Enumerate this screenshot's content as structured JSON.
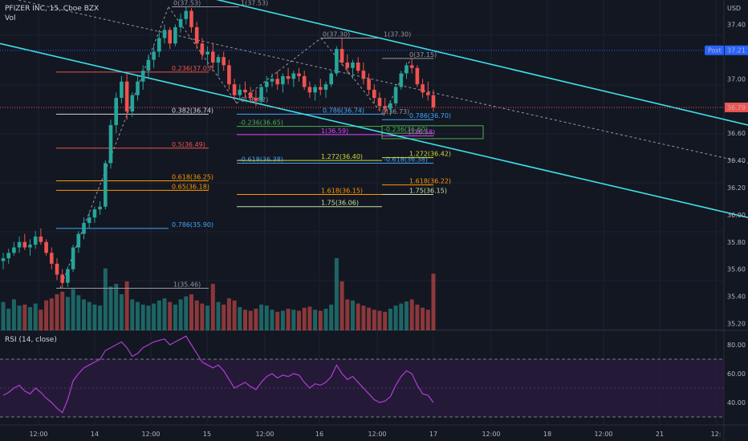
{
  "header": {
    "symbol_line": "PFIZER INC, 15, Cboe BZX",
    "vol_label": "Vol",
    "rsi_label": "RSI (14, close)",
    "currency": "USD"
  },
  "colors": {
    "background": "#131722",
    "up": "#26a69a",
    "down": "#ef5350",
    "channel": "#3ee0e8",
    "rsi_line": "#b03dd6",
    "rsi_fill": "#2a1a3f"
  },
  "price_axis": {
    "ticks": [
      "37.40",
      "37.20",
      "37.00",
      "36.80",
      "36.60",
      "36.40",
      "36.20",
      "36.00",
      "35.80",
      "35.60",
      "35.40",
      "35.20"
    ],
    "post_label": "Post",
    "post_price": "37.21",
    "last_price": "36.79"
  },
  "rsi_axis": {
    "ticks": [
      "80.00",
      "60.00",
      "40.00"
    ]
  },
  "time_axis": {
    "labels": [
      "12:00",
      "14",
      "12:00",
      "15",
      "12:00",
      "16",
      "12:00",
      "17",
      "12:00",
      "18",
      "12:00",
      "21",
      "12:"
    ]
  },
  "fib_labels": [
    {
      "text": "0(37.53)",
      "color": "#9598a1"
    },
    {
      "text": "1(37.53)",
      "color": "#9598a1"
    },
    {
      "text": "0.236(37.05)",
      "color": "#ef5350"
    },
    {
      "text": "0(36.82)",
      "color": "#9598a1"
    },
    {
      "text": "0.382(36.74)",
      "color": "#d1d4dc"
    },
    {
      "text": "0.5(36.49)",
      "color": "#ef5350"
    },
    {
      "text": "0.618(36.25)",
      "color": "#ff9800"
    },
    {
      "text": "0.65(36.18)",
      "color": "#ff9800"
    },
    {
      "text": "0.786(35.90)",
      "color": "#42a5f5"
    },
    {
      "text": "1(35.46)",
      "color": "#9598a1"
    },
    {
      "text": "0(37.30)",
      "color": "#9598a1"
    },
    {
      "text": "1(37.30)",
      "color": "#9598a1"
    },
    {
      "text": "0.786(36.74)",
      "color": "#42a5f5"
    },
    {
      "text": "-0.236(36.65)",
      "color": "#4caf50"
    },
    {
      "text": "1(36.59)",
      "color": "#e040fb"
    },
    {
      "text": "-0.618(36.38)",
      "color": "#42a5f5"
    },
    {
      "text": "1.272(36.40)",
      "color": "#cddc39"
    },
    {
      "text": "1.618(36.15)",
      "color": "#ff9800"
    },
    {
      "text": "1.75(36.06)",
      "color": "#c5e1a5"
    },
    {
      "text": "0(37.15)",
      "color": "#9598a1"
    },
    {
      "text": "0(36.73)",
      "color": "#9598a1"
    },
    {
      "text": "0.786(36.70)",
      "color": "#42a5f5"
    },
    {
      "text": "-0.236(36.60)",
      "color": "#4caf50"
    },
    {
      "text": "1(36.58)",
      "color": "#e040fb"
    },
    {
      "text": "-0.618(36.38)",
      "color": "#42a5f5"
    },
    {
      "text": "1.272(36.42)",
      "color": "#cddc39"
    },
    {
      "text": "1.618(36.22)",
      "color": "#ff9800"
    },
    {
      "text": "1.75(36.15)",
      "color": "#c5e1a5"
    }
  ],
  "chart_data": {
    "type": "candlestick",
    "title": "PFIZER INC, 15, Cboe BZX",
    "ylim": [
      35.15,
      37.58
    ],
    "last_close": 36.79,
    "post_price": 37.21,
    "ohlc": [
      [
        35.66,
        35.72,
        35.6,
        35.68
      ],
      [
        35.68,
        35.75,
        35.64,
        35.72
      ],
      [
        35.72,
        35.8,
        35.7,
        35.76
      ],
      [
        35.76,
        35.84,
        35.72,
        35.8
      ],
      [
        35.8,
        35.86,
        35.74,
        35.76
      ],
      [
        35.76,
        35.82,
        35.7,
        35.78
      ],
      [
        35.78,
        35.88,
        35.75,
        35.84
      ],
      [
        35.84,
        35.9,
        35.78,
        35.8
      ],
      [
        35.8,
        35.82,
        35.7,
        35.72
      ],
      [
        35.72,
        35.76,
        35.6,
        35.64
      ],
      [
        35.64,
        35.68,
        35.52,
        35.56
      ],
      [
        35.56,
        35.6,
        35.46,
        35.5
      ],
      [
        35.5,
        35.62,
        35.47,
        35.6
      ],
      [
        35.6,
        35.78,
        35.58,
        35.76
      ],
      [
        35.76,
        35.88,
        35.72,
        35.86
      ],
      [
        35.86,
        35.98,
        35.82,
        35.94
      ],
      [
        35.94,
        36.02,
        35.9,
        35.98
      ],
      [
        35.98,
        36.06,
        35.94,
        36.04
      ],
      [
        36.04,
        36.1,
        36.0,
        36.06
      ],
      [
        36.06,
        36.4,
        36.04,
        36.38
      ],
      [
        36.38,
        36.7,
        36.34,
        36.66
      ],
      [
        36.66,
        36.9,
        36.6,
        36.86
      ],
      [
        36.86,
        37.02,
        36.82,
        36.98
      ],
      [
        36.98,
        37.04,
        36.7,
        36.76
      ],
      [
        36.76,
        36.9,
        36.72,
        36.88
      ],
      [
        36.88,
        37.02,
        36.84,
        36.98
      ],
      [
        36.98,
        37.1,
        36.92,
        37.06
      ],
      [
        37.06,
        37.18,
        37.0,
        37.14
      ],
      [
        37.14,
        37.24,
        37.08,
        37.2
      ],
      [
        37.2,
        37.34,
        37.16,
        37.3
      ],
      [
        37.3,
        37.4,
        37.26,
        37.36
      ],
      [
        37.36,
        37.38,
        37.22,
        37.26
      ],
      [
        37.26,
        37.4,
        37.24,
        37.38
      ],
      [
        37.38,
        37.48,
        37.34,
        37.44
      ],
      [
        37.44,
        37.53,
        37.4,
        37.5
      ],
      [
        37.5,
        37.52,
        37.34,
        37.38
      ],
      [
        37.38,
        37.42,
        37.22,
        37.26
      ],
      [
        37.26,
        37.3,
        37.14,
        37.18
      ],
      [
        37.18,
        37.24,
        37.1,
        37.2
      ],
      [
        37.2,
        37.26,
        37.08,
        37.12
      ],
      [
        37.12,
        37.18,
        37.02,
        37.16
      ],
      [
        37.16,
        37.2,
        37.06,
        37.1
      ],
      [
        37.1,
        37.14,
        36.92,
        36.96
      ],
      [
        36.96,
        37.0,
        36.84,
        36.88
      ],
      [
        36.88,
        36.96,
        36.84,
        36.92
      ],
      [
        36.92,
        36.98,
        36.86,
        36.9
      ],
      [
        36.9,
        36.94,
        36.82,
        36.86
      ],
      [
        36.86,
        36.92,
        36.8,
        36.84
      ],
      [
        36.84,
        36.96,
        36.82,
        36.94
      ],
      [
        36.94,
        37.02,
        36.9,
        36.98
      ],
      [
        36.98,
        37.04,
        36.94,
        37.0
      ],
      [
        37.0,
        37.06,
        36.92,
        36.96
      ],
      [
        36.96,
        37.04,
        36.9,
        37.02
      ],
      [
        37.02,
        37.08,
        36.96,
        37.0
      ],
      [
        37.0,
        37.06,
        36.94,
        37.04
      ],
      [
        37.04,
        37.08,
        36.98,
        37.02
      ],
      [
        37.02,
        37.06,
        36.92,
        36.94
      ],
      [
        36.94,
        36.98,
        36.86,
        36.9
      ],
      [
        36.9,
        36.96,
        36.84,
        36.94
      ],
      [
        36.94,
        37.0,
        36.88,
        36.92
      ],
      [
        36.92,
        36.98,
        36.86,
        36.96
      ],
      [
        36.96,
        37.06,
        36.94,
        37.04
      ],
      [
        37.04,
        37.24,
        37.02,
        37.22
      ],
      [
        37.22,
        37.3,
        37.1,
        37.12
      ],
      [
        37.12,
        37.18,
        37.04,
        37.08
      ],
      [
        37.08,
        37.14,
        37.0,
        37.12
      ],
      [
        37.12,
        37.16,
        37.04,
        37.06
      ],
      [
        37.06,
        37.12,
        36.96,
        37.0
      ],
      [
        37.0,
        37.04,
        36.88,
        36.92
      ],
      [
        36.92,
        36.96,
        36.82,
        36.86
      ],
      [
        36.86,
        36.9,
        36.76,
        36.8
      ],
      [
        36.8,
        36.86,
        36.74,
        36.78
      ],
      [
        36.78,
        36.84,
        36.73,
        36.82
      ],
      [
        36.82,
        36.96,
        36.8,
        36.94
      ],
      [
        36.94,
        37.06,
        36.92,
        37.04
      ],
      [
        37.04,
        37.12,
        37.0,
        37.1
      ],
      [
        37.1,
        37.15,
        37.04,
        37.08
      ],
      [
        37.08,
        37.1,
        36.94,
        36.96
      ],
      [
        36.96,
        37.0,
        36.86,
        36.9
      ],
      [
        36.9,
        36.98,
        36.84,
        36.88
      ],
      [
        36.88,
        36.92,
        36.76,
        36.79
      ]
    ],
    "volume": [
      55,
      42,
      60,
      48,
      50,
      45,
      52,
      40,
      58,
      62,
      70,
      75,
      65,
      80,
      68,
      60,
      55,
      50,
      48,
      120,
      85,
      90,
      70,
      95,
      60,
      55,
      50,
      48,
      52,
      58,
      62,
      55,
      50,
      60,
      66,
      70,
      58,
      52,
      48,
      90,
      55,
      50,
      62,
      58,
      45,
      40,
      38,
      42,
      50,
      48,
      40,
      36,
      38,
      42,
      40,
      38,
      44,
      46,
      40,
      38,
      42,
      50,
      140,
      95,
      60,
      58,
      52,
      48,
      44,
      40,
      38,
      36,
      42,
      48,
      52,
      56,
      60,
      50,
      44,
      40,
      110
    ],
    "rsi": [
      45,
      47,
      50,
      52,
      48,
      46,
      50,
      47,
      43,
      40,
      36,
      33,
      42,
      55,
      60,
      64,
      66,
      68,
      70,
      76,
      78,
      80,
      82,
      78,
      72,
      74,
      78,
      80,
      82,
      83,
      84,
      80,
      82,
      84,
      86,
      80,
      74,
      68,
      66,
      64,
      66,
      62,
      56,
      50,
      52,
      54,
      51,
      49,
      54,
      58,
      60,
      57,
      59,
      58,
      60,
      59,
      54,
      50,
      53,
      52,
      54,
      58,
      66,
      60,
      56,
      58,
      54,
      50,
      46,
      42,
      40,
      41,
      44,
      52,
      58,
      62,
      60,
      52,
      46,
      45,
      40
    ],
    "channel_lines": [
      {
        "name": "upper",
        "from": [
          0,
          37.96
        ],
        "to": [
          932,
          36.66
        ]
      },
      {
        "name": "lower",
        "from": [
          0,
          37.26
        ],
        "to": [
          932,
          35.98
        ]
      },
      {
        "name": "mid",
        "from": [
          0,
          37.61
        ],
        "to": [
          932,
          36.38
        ]
      }
    ]
  }
}
